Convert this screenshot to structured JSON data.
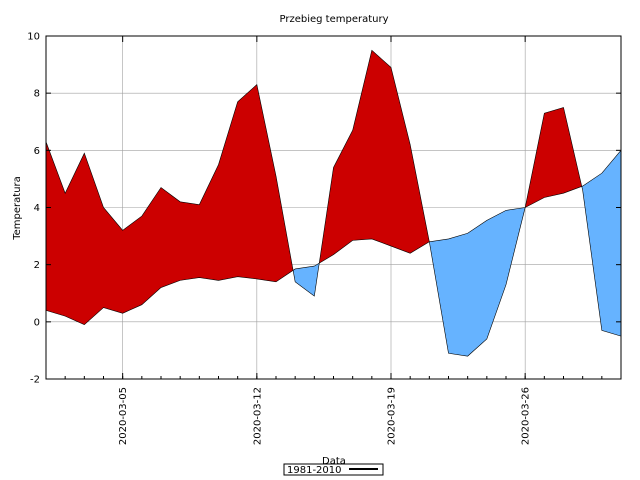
{
  "chart_data": {
    "type": "area",
    "title": "Przebieg temperatury",
    "xlabel": "Data",
    "ylabel": "Temperatura",
    "ylim": [
      -2,
      10
    ],
    "yticks": [
      -2,
      0,
      2,
      4,
      6,
      8,
      10
    ],
    "xlim": [
      "2020-03-01",
      "2020-03-31"
    ],
    "xticks": [
      "2020-03-05",
      "2020-03-12",
      "2020-03-19",
      "2020-03-26"
    ],
    "grid": true,
    "legend_position": "bottom-center",
    "x": [
      "2020-03-01",
      "2020-03-02",
      "2020-03-03",
      "2020-03-04",
      "2020-03-05",
      "2020-03-06",
      "2020-03-07",
      "2020-03-08",
      "2020-03-09",
      "2020-03-10",
      "2020-03-11",
      "2020-03-12",
      "2020-03-13",
      "2020-03-14",
      "2020-03-15",
      "2020-03-16",
      "2020-03-17",
      "2020-03-18",
      "2020-03-19",
      "2020-03-20",
      "2020-03-21",
      "2020-03-22",
      "2020-03-23",
      "2020-03-24",
      "2020-03-25",
      "2020-03-26",
      "2020-03-27",
      "2020-03-28",
      "2020-03-29",
      "2020-03-30",
      "2020-03-31"
    ],
    "series": [
      {
        "role": "observed",
        "values": [
          6.3,
          4.5,
          5.9,
          4.0,
          3.2,
          3.7,
          4.7,
          4.2,
          4.1,
          5.5,
          7.7,
          8.3,
          5.1,
          1.4,
          0.9,
          5.4,
          6.7,
          9.5,
          8.9,
          6.2,
          2.8,
          -1.1,
          -1.2,
          -0.6,
          1.3,
          4.0,
          7.3,
          7.5,
          4.6,
          -0.3,
          -0.5
        ]
      },
      {
        "name": "1981-2010",
        "role": "norm",
        "values": [
          0.4,
          0.2,
          -0.1,
          0.5,
          0.3,
          0.6,
          1.2,
          1.45,
          1.55,
          1.45,
          1.58,
          1.5,
          1.4,
          1.85,
          1.95,
          2.35,
          2.85,
          2.9,
          2.65,
          2.4,
          2.8,
          2.9,
          3.1,
          3.55,
          3.9,
          4.0,
          4.35,
          4.5,
          4.75,
          5.2,
          6.0
        ]
      }
    ],
    "colors": {
      "above": "#cc0000",
      "below": "#66b3ff",
      "line": "#000000",
      "grid": "#a0a0a0"
    },
    "legend": [
      {
        "label": "1981-2010"
      }
    ]
  }
}
